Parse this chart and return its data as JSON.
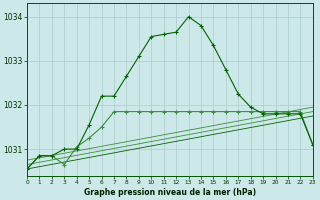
{
  "title": "Graphe pression niveau de la mer (hPa)",
  "bg_color": "#cce8e8",
  "grid_color": "#aacccc",
  "line_color_dark": "#006400",
  "line_color_light": "#3a8f3a",
  "xmin": 0,
  "xmax": 23,
  "ymin": 1030.4,
  "ymax": 1034.3,
  "yticks": [
    1031,
    1032,
    1033,
    1034
  ],
  "xticks": [
    0,
    1,
    2,
    3,
    4,
    5,
    6,
    7,
    8,
    9,
    10,
    11,
    12,
    13,
    14,
    15,
    16,
    17,
    18,
    19,
    20,
    21,
    22,
    23
  ],
  "series1_x": [
    0,
    1,
    2,
    3,
    4,
    5,
    6,
    7,
    8,
    9,
    10,
    11,
    12,
    13,
    14,
    15,
    16,
    17,
    18,
    19,
    20,
    21,
    22,
    23
  ],
  "series1_y": [
    1030.55,
    1030.85,
    1030.85,
    1031.0,
    1031.0,
    1031.55,
    1032.2,
    1032.2,
    1032.65,
    1033.1,
    1033.55,
    1033.6,
    1033.65,
    1034.0,
    1033.8,
    1033.35,
    1032.8,
    1032.25,
    1031.95,
    1031.8,
    1031.8,
    1031.8,
    1031.8,
    1031.1
  ],
  "series2_x": [
    0,
    1,
    2,
    3,
    4,
    5,
    6,
    7,
    8,
    9,
    10,
    11,
    12,
    13,
    14,
    15,
    16,
    17,
    18,
    19,
    20,
    21,
    22,
    23
  ],
  "series2_y": [
    1030.55,
    1030.85,
    1030.85,
    1030.65,
    1031.05,
    1031.25,
    1031.5,
    1031.85,
    1031.85,
    1031.85,
    1031.85,
    1031.85,
    1031.85,
    1031.85,
    1031.85,
    1031.85,
    1031.85,
    1031.85,
    1031.85,
    1031.85,
    1031.85,
    1031.85,
    1031.85,
    1031.1
  ],
  "trend1_x": [
    0,
    23
  ],
  "trend1_y": [
    1030.65,
    1031.85
  ],
  "trend2_x": [
    0,
    23
  ],
  "trend2_y": [
    1030.55,
    1031.75
  ],
  "trend3_x": [
    0,
    23
  ],
  "trend3_y": [
    1030.75,
    1031.95
  ]
}
